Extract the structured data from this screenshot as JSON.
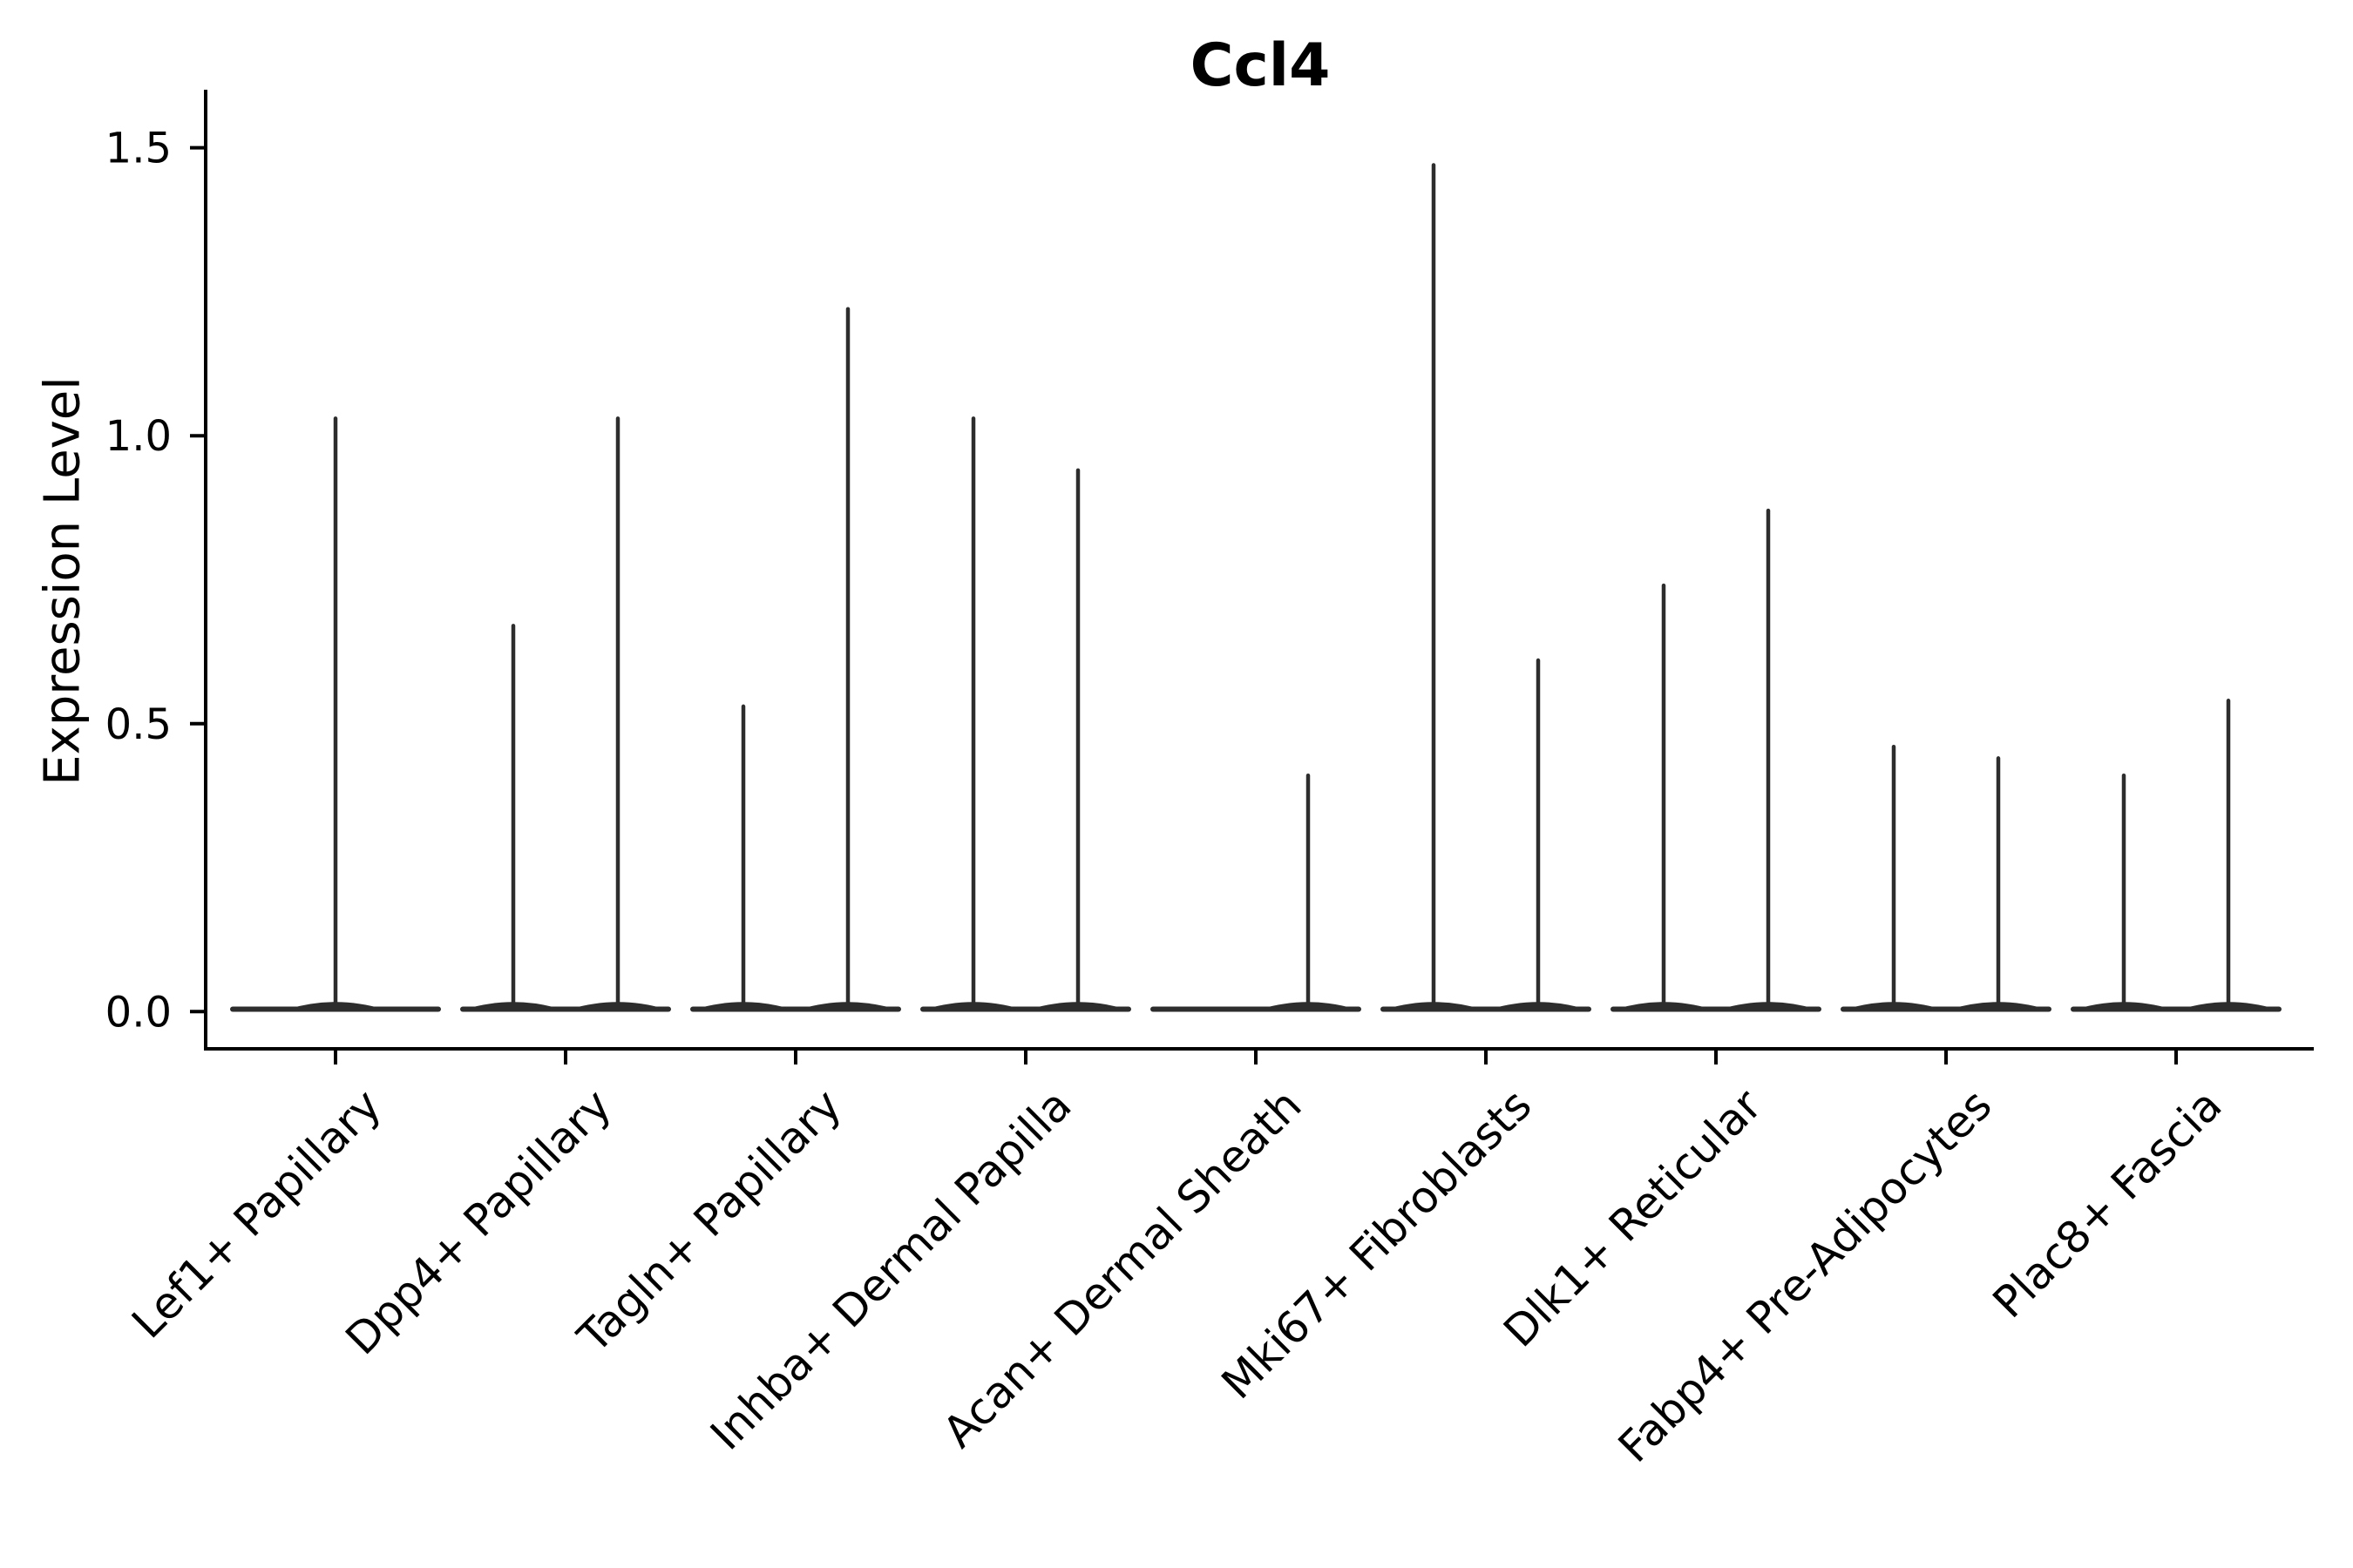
{
  "chart_data": {
    "type": "violin",
    "title": "Ccl4",
    "xlabel": "",
    "ylabel": "Expression Level",
    "grid": false,
    "legend": null,
    "ylim": [
      -0.07,
      1.59
    ],
    "y_axis": {
      "ticks": [
        {
          "label": "0.0",
          "value": 0.0
        },
        {
          "label": "0.5",
          "value": 0.5
        },
        {
          "label": "1.0",
          "value": 1.0
        },
        {
          "label": "1.5",
          "value": 1.5
        }
      ]
    },
    "categories": [
      "Lef1+ Papillary",
      "Dpp4+ Papillary",
      "Tagln+ Papillary",
      "Inhba+ Dermal Papilla",
      "Acan+ Dermal Sheath",
      "Mki67+ Fibroblasts",
      "Dlk1+ Reticular",
      "Fabp4+ Pre-Adipocytes",
      "Plac8+ Fascia"
    ],
    "violins": [
      {
        "category": "Lef1+ Papillary",
        "spikes": [
          {
            "side": "center",
            "value": 1.03
          }
        ]
      },
      {
        "category": "Dpp4+ Papillary",
        "spikes": [
          {
            "side": "left",
            "value": 0.67
          },
          {
            "side": "right",
            "value": 1.03
          }
        ]
      },
      {
        "category": "Tagln+ Papillary",
        "spikes": [
          {
            "side": "left",
            "value": 0.53
          },
          {
            "side": "right",
            "value": 1.22
          }
        ]
      },
      {
        "category": "Inhba+ Dermal Papilla",
        "spikes": [
          {
            "side": "left",
            "value": 1.03
          },
          {
            "side": "right",
            "value": 0.94
          }
        ]
      },
      {
        "category": "Acan+ Dermal Sheath",
        "spikes": [
          {
            "side": "right",
            "value": 0.41
          }
        ]
      },
      {
        "category": "Mki67+ Fibroblasts",
        "spikes": [
          {
            "side": "left",
            "value": 1.47
          },
          {
            "side": "right",
            "value": 0.61
          }
        ]
      },
      {
        "category": "Dlk1+ Reticular",
        "spikes": [
          {
            "side": "left",
            "value": 0.74
          },
          {
            "side": "right",
            "value": 0.87
          }
        ]
      },
      {
        "category": "Fabp4+ Pre-Adipocytes",
        "spikes": [
          {
            "side": "left",
            "value": 0.46
          },
          {
            "side": "right",
            "value": 0.44
          }
        ]
      },
      {
        "category": "Plac8+ Fascia",
        "spikes": [
          {
            "side": "left",
            "value": 0.41
          },
          {
            "side": "right",
            "value": 0.54
          }
        ]
      }
    ],
    "style": {
      "violin_color": "#2d2d2d",
      "axis_color": "#000000",
      "text_color": "#000000",
      "background_color": "#ffffff"
    }
  }
}
